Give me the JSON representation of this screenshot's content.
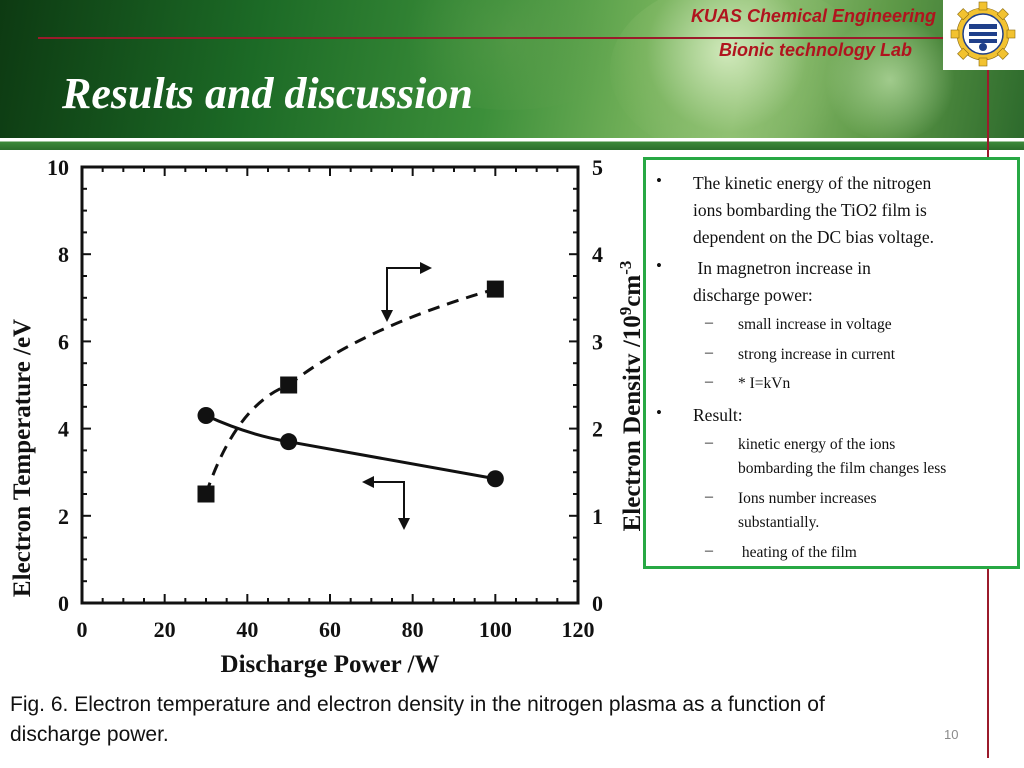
{
  "header": {
    "lab_line1": "KUAS Chemical Engineering",
    "lab_line2": "Bionic  technology  Lab",
    "title": "Results and discussion",
    "logo_icon": "kuas-gear-logo-icon",
    "accent_color": "#b0141e",
    "banner_color": "#2c6e2c"
  },
  "chart_data": {
    "type": "line",
    "xlabel": "Discharge Power /W",
    "ylabel": "Electron Temperature /eV",
    "y2label": "Electron Density /10^9cm^-3",
    "xlim": [
      0,
      120
    ],
    "ylim": [
      0,
      10
    ],
    "y2lim": [
      0,
      5
    ],
    "xticks": [
      "0",
      "20",
      "40",
      "60",
      "80",
      "100",
      "120"
    ],
    "yticks": [
      "0",
      "2",
      "4",
      "6",
      "8",
      "10"
    ],
    "y2ticks": [
      "0",
      "1",
      "2",
      "3",
      "4",
      "5"
    ],
    "grid": false,
    "series": [
      {
        "axis": "left",
        "marker": "circle",
        "line": "solid",
        "x": [
          30,
          50,
          100
        ],
        "y": [
          4.3,
          3.7,
          2.85
        ]
      },
      {
        "axis": "right",
        "marker": "square",
        "line": "dashed",
        "x": [
          30,
          50,
          100
        ],
        "y": [
          1.25,
          2.5,
          3.6
        ]
      }
    ],
    "annotations": [
      {
        "icon": "arrow-right-axis-indicator-icon",
        "series_index": 1
      },
      {
        "icon": "arrow-left-axis-indicator-icon",
        "series_index": 0
      }
    ]
  },
  "bullets": [
    {
      "level": 1,
      "marker": "•",
      "text_lines": [
        "The kinetic energy of the nitrogen",
        "ions bombarding the TiO2 film is",
        "dependent on the DC bias voltage."
      ]
    },
    {
      "level": 1,
      "marker": "•",
      "text_lines": [
        " In magnetron increase in",
        "discharge power:"
      ]
    },
    {
      "level": 2,
      "marker": "–",
      "text_lines": [
        "small increase in voltage"
      ]
    },
    {
      "level": 2,
      "marker": "–",
      "text_lines": [
        "strong increase in current"
      ]
    },
    {
      "level": 2,
      "marker": "–",
      "text_lines": [
        "* I=kVn"
      ]
    },
    {
      "level": 1,
      "marker": "•",
      "text_lines": [
        "Result:"
      ]
    },
    {
      "level": 2,
      "marker": "–",
      "text_lines": [
        "kinetic energy of the ions",
        "bombarding the film changes less"
      ]
    },
    {
      "level": 2,
      "marker": "–",
      "text_lines": [
        "Ions number increases",
        "substantially."
      ]
    },
    {
      "level": 2,
      "marker": "–",
      "text_lines": [
        " heating of the film"
      ]
    }
  ],
  "caption": {
    "line1": "Fig. 6. Electron temperature and electron density in the nitrogen plasma as a function of",
    "line2": "discharge power."
  },
  "page_number": "10"
}
